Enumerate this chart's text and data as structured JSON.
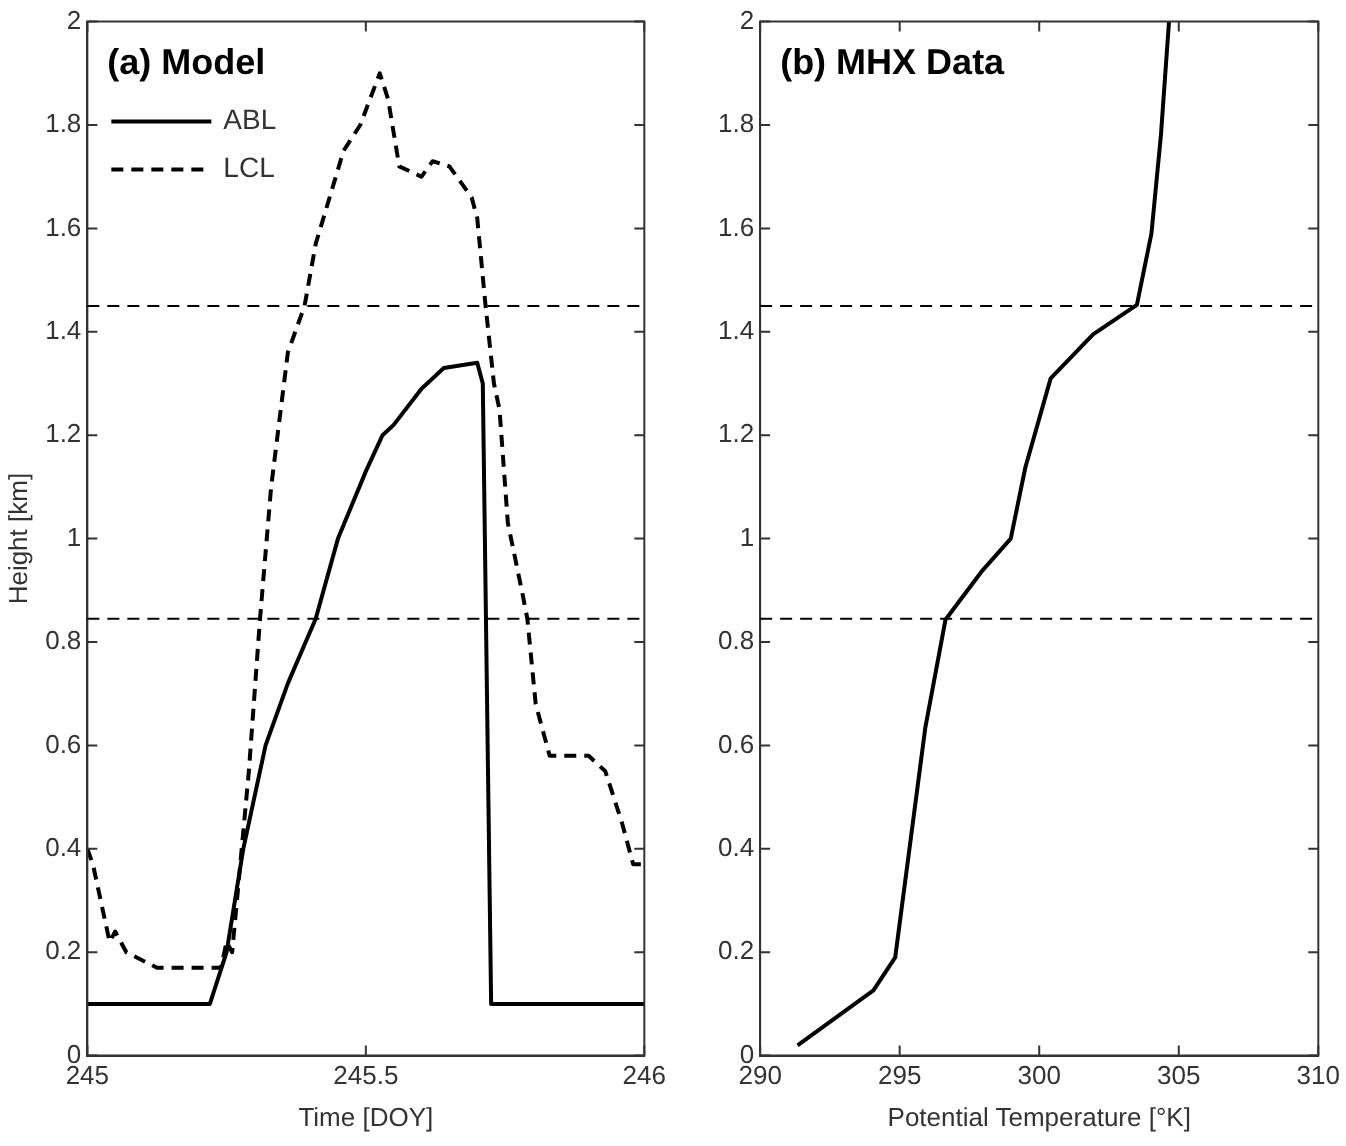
{
  "chart_data": [
    {
      "type": "line",
      "title": "(a) Model",
      "xlabel": "Time [DOY]",
      "ylabel": "Height [km]",
      "legend": "top left",
      "marker": "none",
      "xlim": [
        245,
        246
      ],
      "xticks": [
        245,
        245.5,
        246
      ],
      "ylim": [
        0,
        2
      ],
      "yticks": [
        0,
        0.2,
        0.4,
        0.6,
        0.8,
        1,
        1.2,
        1.4,
        1.6,
        1.8,
        2
      ],
      "ref_lines": [
        {
          "axis": "y",
          "value": 1.45,
          "color": "#000000",
          "line_style": "dashed"
        },
        {
          "axis": "y",
          "value": 0.845,
          "color": "#000000",
          "line_style": "dashed"
        }
      ],
      "series": [
        {
          "name": "ABL",
          "color": "#000000",
          "line_style": "solid",
          "x": [
            245,
            245.22,
            245.25,
            245.28,
            245.32,
            245.36,
            245.41,
            245.45,
            245.5,
            245.53,
            245.55,
            245.6,
            245.64,
            245.7,
            245.71,
            245.72,
            245.725,
            246
          ],
          "values": [
            0.1,
            0.1,
            0.2,
            0.4,
            0.6,
            0.72,
            0.845,
            1.0,
            1.13,
            1.2,
            1.22,
            1.29,
            1.33,
            1.34,
            1.3,
            0.5,
            0.1,
            0.1
          ]
        },
        {
          "name": "LCL",
          "color": "#000000",
          "line_style": "dashed",
          "x": [
            245,
            245.01,
            245.04,
            245.05,
            245.07,
            245.125,
            245.24,
            245.25,
            245.26,
            245.29,
            245.31,
            245.33,
            245.36,
            245.39,
            245.41,
            245.46,
            245.49,
            245.525,
            245.54,
            245.56,
            245.6,
            245.62,
            245.65,
            245.69,
            245.7,
            245.715,
            245.73,
            245.74,
            245.755,
            245.78,
            245.79,
            245.805,
            245.83,
            245.9,
            245.93,
            245.96,
            245.98,
            246
          ],
          "values": [
            0.4,
            0.37,
            0.22,
            0.24,
            0.2,
            0.17,
            0.17,
            0.22,
            0.2,
            0.55,
            0.845,
            1.1,
            1.36,
            1.45,
            1.57,
            1.75,
            1.8,
            1.9,
            1.85,
            1.72,
            1.7,
            1.73,
            1.72,
            1.66,
            1.62,
            1.45,
            1.3,
            1.25,
            1.03,
            0.9,
            0.845,
            0.68,
            0.58,
            0.58,
            0.55,
            0.45,
            0.37,
            0.37
          ]
        }
      ]
    },
    {
      "type": "line",
      "title": "(b) MHX Data",
      "xlabel": "Potential Temperature [°K]",
      "marker": "none",
      "xlim": [
        290,
        310
      ],
      "xticks": [
        290,
        295,
        300,
        305,
        310
      ],
      "ylim": [
        0,
        2
      ],
      "yticks": [
        0,
        0.2,
        0.4,
        0.6,
        0.8,
        1,
        1.2,
        1.4,
        1.6,
        1.8,
        2
      ],
      "ref_lines": [
        {
          "axis": "y",
          "value": 1.45,
          "color": "#000000",
          "line_style": "dashed"
        },
        {
          "axis": "y",
          "value": 0.845,
          "color": "#000000",
          "line_style": "dashed"
        }
      ],
      "series": [
        {
          "color": "#000000",
          "line_style": "solid",
          "x": [
            291.34,
            294.06,
            294.84,
            295.92,
            296.64,
            297.93,
            298.98,
            299.5,
            300.41,
            301.93,
            303.5,
            304.02,
            304.36,
            304.65
          ],
          "values": [
            0.02,
            0.126,
            0.19,
            0.635,
            0.843,
            0.936,
            1.0,
            1.137,
            1.31,
            1.395,
            1.452,
            1.59,
            1.78,
            2.0
          ]
        }
      ]
    }
  ]
}
